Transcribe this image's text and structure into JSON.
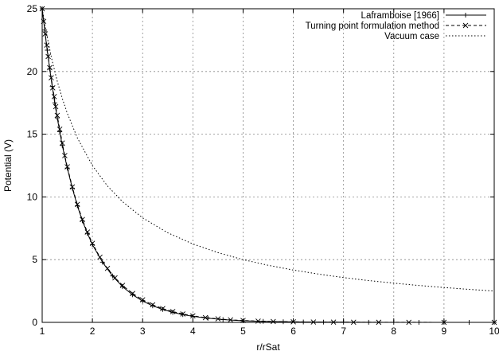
{
  "chart_data": {
    "type": "line",
    "title": "",
    "xlabel": "r/rSat",
    "ylabel": "Potential (V)",
    "xlim": [
      1,
      10
    ],
    "ylim": [
      0,
      25
    ],
    "xticks": [
      1,
      2,
      3,
      4,
      5,
      6,
      7,
      8,
      9,
      10
    ],
    "yticks": [
      0,
      5,
      10,
      15,
      20,
      25
    ],
    "grid": true,
    "legend": "top-right",
    "series": [
      {
        "name": "Laframboise [1966]",
        "style": "solid with + markers",
        "color": "#000000",
        "x": [
          1.0,
          1.05,
          1.1,
          1.15,
          1.2,
          1.25,
          1.3,
          1.35,
          1.4,
          1.5,
          1.6,
          1.7,
          1.8,
          1.9,
          2.0,
          2.2,
          2.4,
          2.6,
          2.8,
          3.0,
          3.2,
          3.4,
          3.6,
          3.8,
          4.0,
          4.3,
          4.6,
          5.0,
          5.4,
          5.8,
          6.2,
          6.6,
          7.0,
          7.5,
          8.0,
          8.5,
          9.0,
          9.5,
          10.0
        ],
        "y": [
          25.0,
          23.3,
          21.7,
          20.2,
          18.8,
          17.5,
          16.3,
          15.2,
          14.1,
          12.3,
          10.7,
          9.3,
          8.1,
          7.1,
          6.2,
          4.8,
          3.7,
          2.85,
          2.2,
          1.7,
          1.32,
          1.03,
          0.8,
          0.62,
          0.48,
          0.33,
          0.22,
          0.13,
          0.08,
          0.05,
          0.03,
          0.02,
          0.012,
          0.007,
          0.004,
          0.002,
          0.0012,
          0.0007,
          0.0004
        ]
      },
      {
        "name": "Turning point formulation method",
        "style": "dashed with x markers",
        "color": "#000000",
        "x": [
          1.0,
          1.03,
          1.06,
          1.09,
          1.12,
          1.15,
          1.18,
          1.21,
          1.24,
          1.27,
          1.3,
          1.35,
          1.4,
          1.45,
          1.5,
          1.6,
          1.7,
          1.8,
          1.9,
          2.0,
          2.15,
          2.3,
          2.45,
          2.6,
          2.8,
          3.0,
          3.2,
          3.4,
          3.6,
          3.8,
          4.0,
          4.25,
          4.5,
          4.75,
          5.0,
          5.3,
          5.6,
          6.0,
          6.4,
          6.8,
          7.2,
          7.7,
          8.3,
          9.0,
          10.0
        ],
        "y": [
          25.0,
          24.0,
          23.0,
          22.1,
          21.2,
          20.3,
          19.5,
          18.7,
          18.0,
          17.2,
          16.5,
          15.4,
          14.3,
          13.3,
          12.4,
          10.8,
          9.4,
          8.2,
          7.2,
          6.3,
          5.2,
          4.3,
          3.55,
          2.95,
          2.3,
          1.8,
          1.4,
          1.1,
          0.86,
          0.67,
          0.52,
          0.38,
          0.28,
          0.2,
          0.15,
          0.1,
          0.07,
          0.045,
          0.03,
          0.02,
          0.013,
          0.008,
          0.005,
          0.003,
          0.001
        ]
      },
      {
        "name": "Vacuum case",
        "style": "dotted",
        "color": "#000000",
        "x": [
          1.0,
          1.1,
          1.2,
          1.3,
          1.4,
          1.5,
          1.7,
          2.0,
          2.3,
          2.6,
          3.0,
          3.5,
          4.0,
          4.5,
          5.0,
          5.5,
          6.0,
          6.5,
          7.0,
          7.5,
          8.0,
          8.5,
          9.0,
          9.5,
          10.0
        ],
        "y": [
          25.0,
          22.73,
          20.83,
          19.23,
          17.86,
          16.67,
          14.71,
          12.5,
          10.87,
          9.62,
          8.33,
          7.14,
          6.25,
          5.56,
          5.0,
          4.55,
          4.17,
          3.85,
          3.57,
          3.33,
          3.13,
          2.94,
          2.78,
          2.63,
          2.5
        ]
      }
    ]
  }
}
